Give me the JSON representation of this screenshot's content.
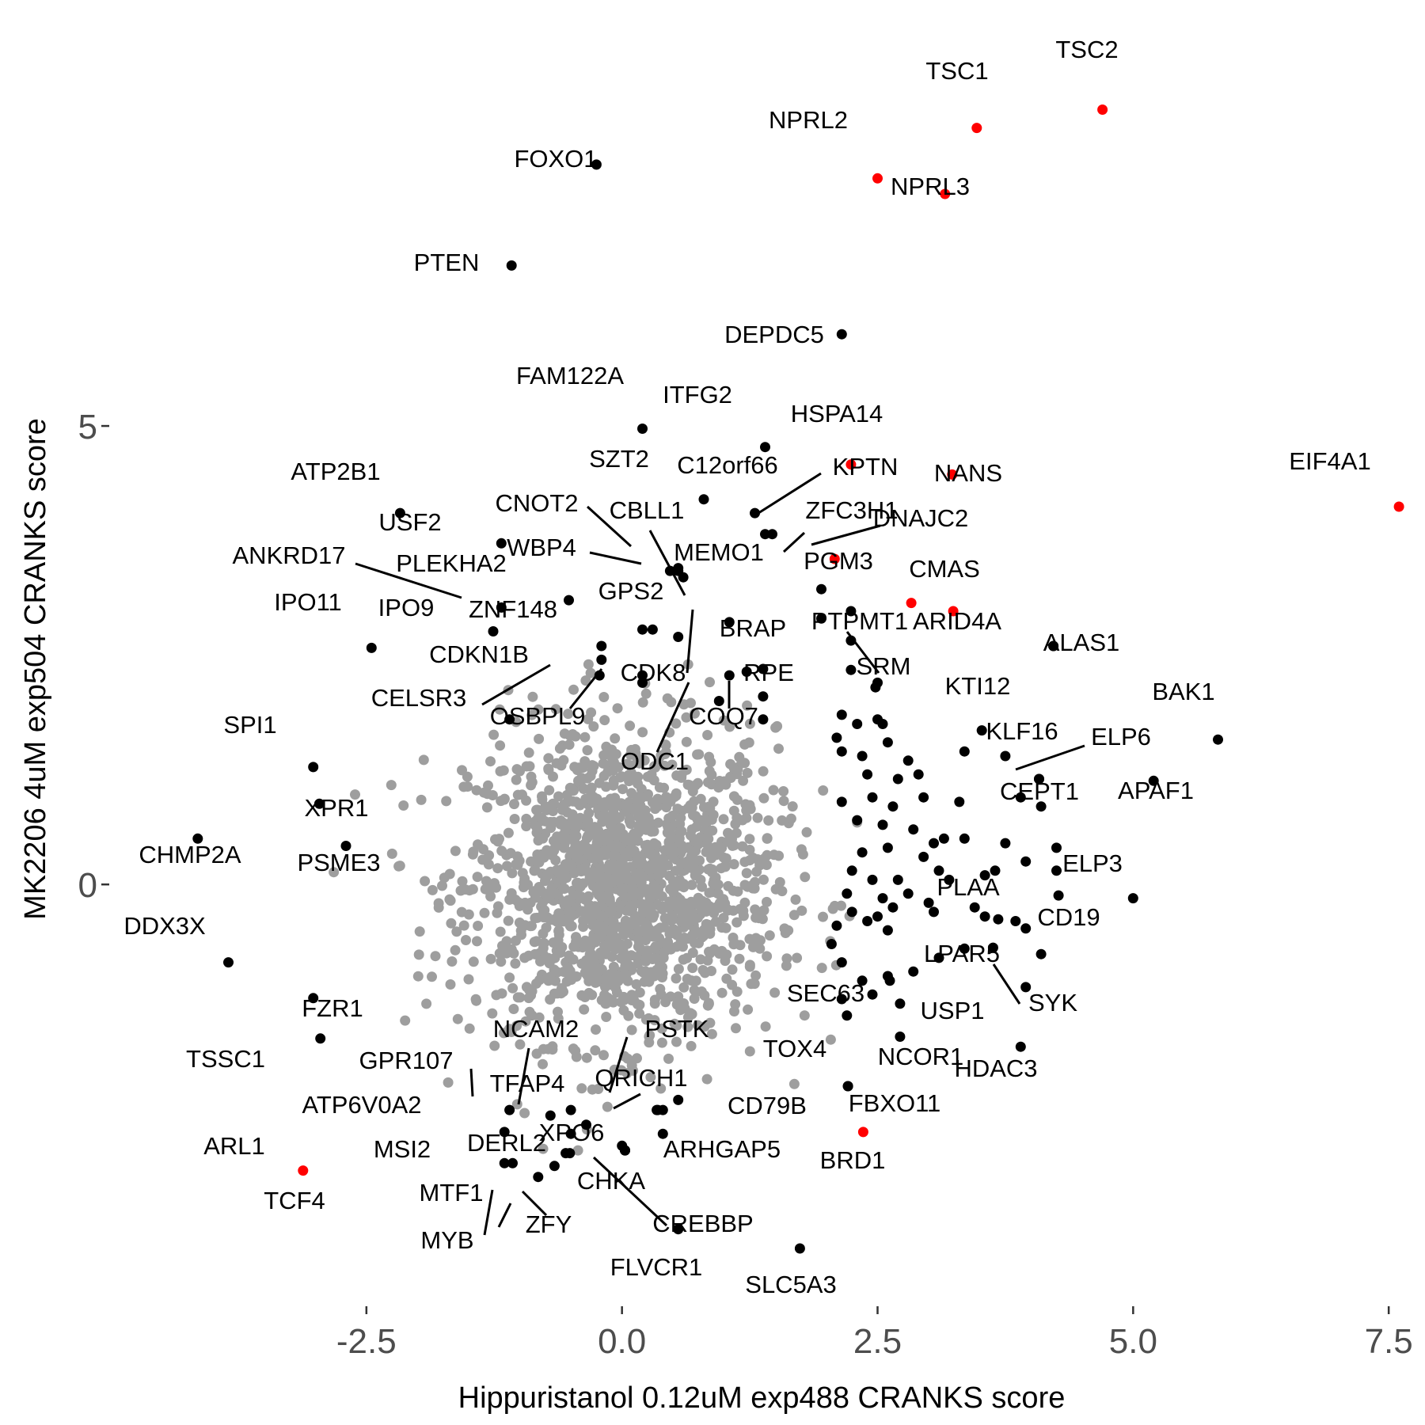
{
  "chart_data": {
    "type": "scatter",
    "title": "",
    "xlabel": "Hippuristanol 0.12uM exp488 CRANKS score",
    "ylabel": "MK2206 4uM exp504 CRANKS score",
    "xlim": [
      -5.0,
      7.7
    ],
    "ylim": [
      -4.6,
      9.3
    ],
    "x_ticks": [
      -2.5,
      0.0,
      2.5,
      5.0,
      7.5
    ],
    "x_tick_labels": [
      "-2.5",
      "0.0",
      "2.5",
      "5.0",
      "7.5"
    ],
    "y_ticks": [
      0,
      5
    ],
    "y_tick_labels": [
      "0",
      "5"
    ],
    "grid": false,
    "legend": "none",
    "colors": {
      "background": "#9e9e9e",
      "highlight": "#000000",
      "hit": "#ff0000",
      "tick_text": "#4d4d4d"
    },
    "background_cloud": {
      "description_series": "all other genes (unlabeled)",
      "center": [
        0.0,
        0.0
      ],
      "sd": [
        0.75,
        0.85
      ],
      "count": 1600
    },
    "series": [
      {
        "color": "#ff0000",
        "points": [
          {
            "label": "TSC2",
            "x": 4.7,
            "y": 8.45
          },
          {
            "label": "TSC1",
            "x": 3.47,
            "y": 8.25
          },
          {
            "label": "NPRL2",
            "x": 2.5,
            "y": 7.7
          },
          {
            "label": "NPRL3",
            "x": 3.16,
            "y": 7.53
          },
          {
            "label": "HSPA14",
            "x": 2.24,
            "y": 4.58
          },
          {
            "label": "NANS",
            "x": 3.23,
            "y": 4.47
          },
          {
            "label": "EIF4A1",
            "x": 7.6,
            "y": 4.12
          },
          {
            "label": "DNAJC2",
            "x": 2.08,
            "y": 3.55
          },
          {
            "label": "PGM3",
            "x": 2.83,
            "y": 3.07
          },
          {
            "label": "CMAS",
            "x": 3.24,
            "y": 2.98
          },
          {
            "label": "TCF4",
            "x": -3.12,
            "y": -3.12
          },
          {
            "label": "BRD1",
            "x": 2.36,
            "y": -2.7
          }
        ]
      },
      {
        "color": "#000000",
        "points": [
          {
            "label": "FOXO1",
            "x": -0.25,
            "y": 7.85
          },
          {
            "label": "PTEN",
            "x": -1.08,
            "y": 6.75
          },
          {
            "label": "DEPDC5",
            "x": 2.15,
            "y": 6.0
          },
          {
            "label": "FAM122A",
            "x": 0.2,
            "y": 4.97
          },
          {
            "label": "ITFG2",
            "x": 1.4,
            "y": 4.77
          },
          {
            "label": "SZT2",
            "x": 0.8,
            "y": 4.2
          },
          {
            "label": "C12orf66",
            "x": 1.3,
            "y": 4.05
          },
          {
            "label": "KPTN",
            "x": 1.47,
            "y": 3.82
          },
          {
            "label": "ZFC3H1",
            "x": 1.4,
            "y": 3.82
          },
          {
            "label": "ATP2B1",
            "x": -2.17,
            "y": 4.05
          },
          {
            "label": "USF2",
            "x": -1.18,
            "y": 3.72
          },
          {
            "label": "CNOT2",
            "x": 0.47,
            "y": 3.42
          },
          {
            "label": "CBLL1",
            "x": 0.6,
            "y": 3.35
          },
          {
            "label": "WBP4",
            "x": 0.55,
            "y": 3.42
          },
          {
            "label": "MEMO1",
            "x": 1.95,
            "y": 3.22
          },
          {
            "label": "ANKRD17",
            "x": -1.18,
            "y": 3.02
          },
          {
            "label": "PLEKHA2",
            "x": -0.52,
            "y": 3.1
          },
          {
            "label": "IPO9",
            "x": -1.26,
            "y": 2.76
          },
          {
            "label": "ZNF148",
            "x": -0.2,
            "y": 2.45
          },
          {
            "label": "IPO11",
            "x": -2.45,
            "y": 2.58
          },
          {
            "label": "GPS2",
            "x": 1.05,
            "y": 2.86
          },
          {
            "label": "BRAP",
            "x": 1.22,
            "y": 2.32
          },
          {
            "label": "PTPMT1",
            "x": 2.24,
            "y": 2.34
          },
          {
            "label": "ARID4A",
            "x": 4.22,
            "y": 2.6
          },
          {
            "label": "SRM",
            "x": 2.48,
            "y": 2.15
          },
          {
            "label": "ALAS1",
            "x": 4.22,
            "y": 2.6
          },
          {
            "label": "CDKN1B",
            "x": -0.22,
            "y": 2.28
          },
          {
            "label": "CDK8",
            "x": 0.2,
            "y": 2.28
          },
          {
            "label": "RPE",
            "x": 1.38,
            "y": 2.05
          },
          {
            "label": "CELSR3",
            "x": -1.1,
            "y": 1.8
          },
          {
            "label": "OSBPL9",
            "x": 0.2,
            "y": 2.2
          },
          {
            "label": "COQ7",
            "x": 1.38,
            "y": 1.8
          },
          {
            "label": "ODC1",
            "x": 0.95,
            "y": 2.0
          },
          {
            "label": "KTI12",
            "x": 3.52,
            "y": 1.68
          },
          {
            "label": "BAK1",
            "x": 5.83,
            "y": 1.58
          },
          {
            "label": "KLF16",
            "x": 4.08,
            "y": 1.15
          },
          {
            "label": "ELP6",
            "x": 4.08,
            "y": 1.15
          },
          {
            "label": "APAF1",
            "x": 5.2,
            "y": 1.13
          },
          {
            "label": "CEPT1",
            "x": 4.1,
            "y": 0.85
          },
          {
            "label": "SPI1",
            "x": -3.02,
            "y": 1.28
          },
          {
            "label": "XPR1",
            "x": -2.96,
            "y": 0.88
          },
          {
            "label": "CHMP2A",
            "x": -4.15,
            "y": 0.5
          },
          {
            "label": "PSME3",
            "x": -2.7,
            "y": 0.42
          },
          {
            "label": "ELP3",
            "x": 5.0,
            "y": -0.15
          },
          {
            "label": "CD19",
            "x": 4.27,
            "y": -0.12
          },
          {
            "label": "PLAA",
            "x": 3.68,
            "y": -0.38
          },
          {
            "label": "DDX3X",
            "x": -3.85,
            "y": -0.85
          },
          {
            "label": "LPAR5",
            "x": 3.63,
            "y": -0.69
          },
          {
            "label": "SYK",
            "x": 4.1,
            "y": -0.76
          },
          {
            "label": "SEC63",
            "x": 2.62,
            "y": -1.05
          },
          {
            "label": "USP1",
            "x": 3.95,
            "y": -1.12
          },
          {
            "label": "FZR1",
            "x": -3.02,
            "y": -1.24
          },
          {
            "label": "TSSC1",
            "x": -2.95,
            "y": -1.68
          },
          {
            "label": "NCAM2",
            "x": -0.5,
            "y": -2.46
          },
          {
            "label": "PSTK",
            "x": 0.34,
            "y": -2.46
          },
          {
            "label": "TOX4",
            "x": 2.2,
            "y": -1.43
          },
          {
            "label": "NCOR1",
            "x": 2.72,
            "y": -1.66
          },
          {
            "label": "HDAC3",
            "x": 3.9,
            "y": -1.77
          },
          {
            "label": "GPR107",
            "x": -1.1,
            "y": -2.46
          },
          {
            "label": "QRICH1",
            "x": 0.4,
            "y": -2.46
          },
          {
            "label": "TFAP4",
            "x": -0.7,
            "y": -2.52
          },
          {
            "label": "FBXO11",
            "x": 2.21,
            "y": -2.2
          },
          {
            "label": "CD79B",
            "x": 2.21,
            "y": -2.2
          },
          {
            "label": "ATP6V0A2",
            "x": -1.15,
            "y": -2.7
          },
          {
            "label": "XPO6",
            "x": 0.03,
            "y": -2.9
          },
          {
            "label": "DERL2",
            "x": -0.51,
            "y": -2.93
          },
          {
            "label": "MSI2",
            "x": -1.15,
            "y": -3.04
          },
          {
            "label": "CHKA",
            "x": 0.03,
            "y": -2.9
          },
          {
            "label": "ZFY",
            "x": 0.03,
            "y": -2.9
          },
          {
            "label": "MTF1",
            "x": -1.07,
            "y": -3.04
          },
          {
            "label": "CREBBP",
            "x": -0.66,
            "y": -3.07
          },
          {
            "label": "MYB",
            "x": -0.82,
            "y": -3.19
          },
          {
            "label": "FLVCR1",
            "x": 0.55,
            "y": -3.76
          },
          {
            "label": "SLC5A3",
            "x": 1.74,
            "y": -3.97
          }
        ]
      },
      {
        "color": "#000000",
        "name": "",
        "points": [
          {
            "x": 0.55,
            "y": 3.45
          },
          {
            "x": 1.95,
            "y": 2.9
          },
          {
            "x": 2.24,
            "y": 2.98
          },
          {
            "x": 2.24,
            "y": 2.66
          },
          {
            "x": 0.2,
            "y": 2.78
          },
          {
            "x": 0.3,
            "y": 2.78
          },
          {
            "x": 0.55,
            "y": 2.7
          },
          {
            "x": -0.2,
            "y": 2.6
          },
          {
            "x": 1.05,
            "y": 2.28
          },
          {
            "x": 1.38,
            "y": 2.35
          },
          {
            "x": 2.5,
            "y": 2.2
          },
          {
            "x": 2.15,
            "y": 1.85
          },
          {
            "x": 2.3,
            "y": 1.75
          },
          {
            "x": 2.5,
            "y": 1.8
          },
          {
            "x": 2.1,
            "y": 1.6
          },
          {
            "x": 2.15,
            "y": 1.45
          },
          {
            "x": 2.35,
            "y": 1.4
          },
          {
            "x": 2.6,
            "y": 1.55
          },
          {
            "x": 2.55,
            "y": 1.75
          },
          {
            "x": 2.8,
            "y": 1.35
          },
          {
            "x": 2.4,
            "y": 1.2
          },
          {
            "x": 2.7,
            "y": 1.15
          },
          {
            "x": 2.9,
            "y": 1.2
          },
          {
            "x": 3.35,
            "y": 1.45
          },
          {
            "x": 3.75,
            "y": 1.4
          },
          {
            "x": 3.3,
            "y": 0.9
          },
          {
            "x": 3.9,
            "y": 0.95
          },
          {
            "x": 2.15,
            "y": 0.9
          },
          {
            "x": 2.45,
            "y": 0.95
          },
          {
            "x": 2.65,
            "y": 0.85
          },
          {
            "x": 2.95,
            "y": 0.95
          },
          {
            "x": 2.3,
            "y": 0.7
          },
          {
            "x": 2.55,
            "y": 0.65
          },
          {
            "x": 2.85,
            "y": 0.6
          },
          {
            "x": 3.05,
            "y": 0.45
          },
          {
            "x": 3.15,
            "y": 0.5
          },
          {
            "x": 3.35,
            "y": 0.5
          },
          {
            "x": 3.75,
            "y": 0.45
          },
          {
            "x": 4.25,
            "y": 0.4
          },
          {
            "x": 4.25,
            "y": 0.15
          },
          {
            "x": 3.95,
            "y": 0.25
          },
          {
            "x": 2.35,
            "y": 0.35
          },
          {
            "x": 2.6,
            "y": 0.4
          },
          {
            "x": 2.95,
            "y": 0.3
          },
          {
            "x": 3.1,
            "y": 0.15
          },
          {
            "x": 3.65,
            "y": 0.15
          },
          {
            "x": 3.55,
            "y": 0.1
          },
          {
            "x": 2.25,
            "y": 0.15
          },
          {
            "x": 2.45,
            "y": 0.05
          },
          {
            "x": 2.7,
            "y": 0.05
          },
          {
            "x": 3.2,
            "y": 0.05
          },
          {
            "x": 2.2,
            "y": -0.1
          },
          {
            "x": 2.55,
            "y": -0.15
          },
          {
            "x": 2.8,
            "y": -0.1
          },
          {
            "x": 2.25,
            "y": -0.3
          },
          {
            "x": 2.5,
            "y": -0.35
          },
          {
            "x": 2.65,
            "y": -0.25
          },
          {
            "x": 3.0,
            "y": -0.2
          },
          {
            "x": 2.1,
            "y": -0.45
          },
          {
            "x": 2.4,
            "y": -0.4
          },
          {
            "x": 2.6,
            "y": -0.5
          },
          {
            "x": 3.05,
            "y": -0.3
          },
          {
            "x": 3.45,
            "y": -0.25
          },
          {
            "x": 3.55,
            "y": -0.35
          },
          {
            "x": 3.85,
            "y": -0.4
          },
          {
            "x": 3.95,
            "y": -0.48
          },
          {
            "x": 2.05,
            "y": -0.65
          },
          {
            "x": 3.35,
            "y": -0.7
          },
          {
            "x": 3.1,
            "y": -0.8
          },
          {
            "x": 2.15,
            "y": -0.85
          },
          {
            "x": 2.85,
            "y": -0.95
          },
          {
            "x": 2.6,
            "y": -1.0
          },
          {
            "x": 2.35,
            "y": -1.05
          },
          {
            "x": 2.72,
            "y": -1.3
          },
          {
            "x": 2.15,
            "y": -1.25
          },
          {
            "x": 2.45,
            "y": -1.2
          },
          {
            "x": 0.35,
            "y": -2.46
          },
          {
            "x": -0.5,
            "y": -2.72
          },
          {
            "x": -0.55,
            "y": -2.93
          },
          {
            "x": 0.55,
            "y": -2.35
          },
          {
            "x": 0.4,
            "y": -2.72
          },
          {
            "x": -0.35,
            "y": -2.62
          },
          {
            "x": 0.0,
            "y": -2.85
          }
        ]
      }
    ]
  },
  "annotations": [
    {
      "text": "TSC2"
    },
    {
      "text": "TSC1"
    },
    {
      "text": "NPRL2"
    },
    {
      "text": "NPRL3"
    },
    {
      "text": "FOXO1"
    },
    {
      "text": "PTEN"
    },
    {
      "text": "DEPDC5"
    },
    {
      "text": "FAM122A"
    },
    {
      "text": "ITFG2"
    },
    {
      "text": "HSPA14"
    },
    {
      "text": "EIF4A1"
    },
    {
      "text": "SZT2"
    },
    {
      "text": "C12orf66"
    },
    {
      "text": "KPTN"
    },
    {
      "text": "NANS"
    },
    {
      "text": "ATP2B1"
    },
    {
      "text": "USF2"
    },
    {
      "text": "CNOT2"
    },
    {
      "text": "CBLL1"
    },
    {
      "text": "ZFC3H1"
    },
    {
      "text": "DNAJC2"
    },
    {
      "text": "WBP4"
    },
    {
      "text": "MEMO1"
    },
    {
      "text": "ANKRD17"
    },
    {
      "text": "PLEKHA2"
    },
    {
      "text": "PGM3"
    },
    {
      "text": "CMAS"
    },
    {
      "text": "IPO11"
    },
    {
      "text": "IPO9"
    },
    {
      "text": "ZNF148"
    },
    {
      "text": "GPS2"
    },
    {
      "text": "BRAP"
    },
    {
      "text": "PTPMT1"
    },
    {
      "text": "ARID4A"
    },
    {
      "text": "ALAS1"
    },
    {
      "text": "CDKN1B"
    },
    {
      "text": "CDK8"
    },
    {
      "text": "RPE"
    },
    {
      "text": "SRM"
    },
    {
      "text": "CELSR3"
    },
    {
      "text": "OSBPL9"
    },
    {
      "text": "COQ7"
    },
    {
      "text": "ODC1"
    },
    {
      "text": "KTI12"
    },
    {
      "text": "BAK1"
    },
    {
      "text": "KLF16"
    },
    {
      "text": "ELP6"
    },
    {
      "text": "APAF1"
    },
    {
      "text": "CEPT1"
    },
    {
      "text": "SPI1"
    },
    {
      "text": "XPR1"
    },
    {
      "text": "CHMP2A"
    },
    {
      "text": "PSME3"
    },
    {
      "text": "ELP3"
    },
    {
      "text": "PLAA"
    },
    {
      "text": "CD19"
    },
    {
      "text": "DDX3X"
    },
    {
      "text": "LPAR5"
    },
    {
      "text": "SYK"
    },
    {
      "text": "SEC63"
    },
    {
      "text": "USP1"
    },
    {
      "text": "FZR1"
    },
    {
      "text": "TSSC1"
    },
    {
      "text": "NCAM2"
    },
    {
      "text": "PSTK"
    },
    {
      "text": "TOX4"
    },
    {
      "text": "NCOR1"
    },
    {
      "text": "HDAC3"
    },
    {
      "text": "GPR107"
    },
    {
      "text": "QRICH1"
    },
    {
      "text": "TFAP4"
    },
    {
      "text": "FBXO11"
    },
    {
      "text": "CD79B"
    },
    {
      "text": "ATP6V0A2"
    },
    {
      "text": "XPO6"
    },
    {
      "text": "ARHGAP5"
    },
    {
      "text": "BRD1"
    },
    {
      "text": "ARL1"
    },
    {
      "text": "DERL2"
    },
    {
      "text": "MSI2"
    },
    {
      "text": "CHKA"
    },
    {
      "text": "TCF4"
    },
    {
      "text": "MTF1"
    },
    {
      "text": "CREBBP"
    },
    {
      "text": "ZFY"
    },
    {
      "text": "MYB"
    },
    {
      "text": "FLVCR1"
    },
    {
      "text": "SLC5A3"
    }
  ]
}
